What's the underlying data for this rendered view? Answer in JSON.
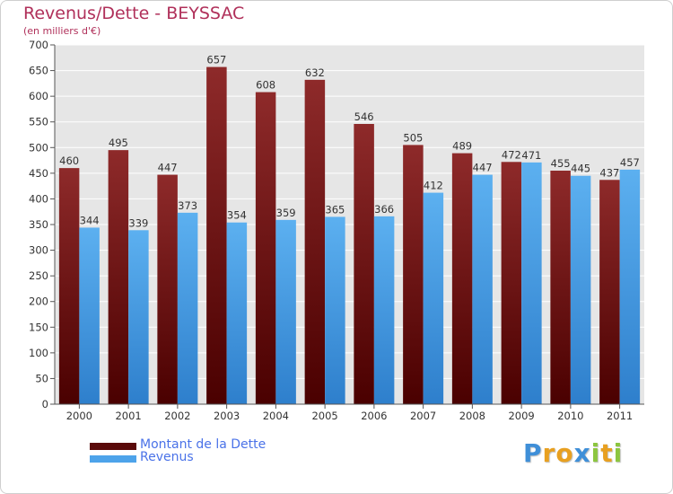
{
  "chart_data": {
    "type": "bar",
    "title": "Revenus/Dette - BEYSSAC",
    "subtitle": "(en milliers d'€)",
    "categories": [
      "2000",
      "2001",
      "2002",
      "2003",
      "2004",
      "2005",
      "2006",
      "2007",
      "2008",
      "2009",
      "2010",
      "2011"
    ],
    "series": [
      {
        "name": "Montant de la Dette",
        "color": "#7a1c1c",
        "values": [
          460,
          495,
          447,
          657,
          608,
          632,
          546,
          505,
          489,
          472,
          455,
          437
        ]
      },
      {
        "name": "Revenus",
        "color": "#4da3ea",
        "values": [
          344,
          339,
          373,
          354,
          359,
          365,
          366,
          412,
          447,
          471,
          445,
          457
        ]
      }
    ],
    "ylim": [
      0,
      700
    ],
    "yticks": [
      0,
      50,
      100,
      150,
      200,
      250,
      300,
      350,
      400,
      450,
      500,
      550,
      600,
      650,
      700
    ],
    "grid": true,
    "legend_position": "bottom-left"
  },
  "logo": {
    "letters": [
      "P",
      "r",
      "o",
      "x",
      "i",
      "t",
      "i"
    ],
    "colors": [
      "#3f8fd8",
      "#e8a020",
      "#e8a020",
      "#3f8fd8",
      "#8cc63f",
      "#e8a020",
      "#8cc63f"
    ]
  }
}
